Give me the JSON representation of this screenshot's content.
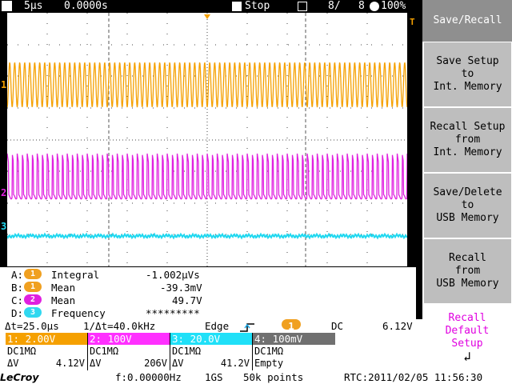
{
  "topbar": {
    "mode_icon": "M",
    "timebase": "5µs",
    "delay": "0.0000s",
    "run_state": "Stop",
    "acq_count": "8/",
    "acq_total": "8",
    "zoom": "100%"
  },
  "markers": {
    "ch1": "1",
    "ch2": "2",
    "ch3": "3",
    "trigger": "T"
  },
  "measurements": [
    {
      "slot": "A:",
      "channel": "1",
      "label": "Integral",
      "value": "-1.002µVs",
      "color": "#f0a020"
    },
    {
      "slot": "B:",
      "channel": "1",
      "label": "Mean",
      "value": "-39.3mV",
      "color": "#f0a020"
    },
    {
      "slot": "C:",
      "channel": "2",
      "label": "Mean",
      "value": "49.7V",
      "color": "#e020e0"
    },
    {
      "slot": "D:",
      "channel": "3",
      "label": "Frequency",
      "value": "*********",
      "color": "#30d8f0"
    }
  ],
  "timebase_row": {
    "delta_t": "Δt=25.0µs",
    "inv_delta_t": "1/Δt=40.0kHz",
    "trigger_type": "Edge",
    "trigger_channel": "1",
    "coupling": "DC",
    "trigger_level": "6.12V"
  },
  "channels": [
    {
      "header": "1: 2.00V",
      "coupling": "DC1MΩ",
      "dv_label": "ΔV",
      "dv": "4.12V",
      "color": "#f5a000"
    },
    {
      "header": "2: 100V",
      "coupling": "DC1MΩ",
      "dv_label": "ΔV",
      "dv": "206V",
      "color": "#ff30ff"
    },
    {
      "header": "3: 20.0V",
      "coupling": "DC1MΩ",
      "dv_label": "ΔV",
      "dv": "41.2V",
      "color": "#20e0f8"
    },
    {
      "header": "4: 100mV",
      "coupling": "DC1MΩ",
      "dv_label": "",
      "dv": "Empty",
      "color": "#707070"
    }
  ],
  "bottom": {
    "logo": "LeCroy",
    "freq": "f:0.00000Hz",
    "sample_rate": "1GS",
    "points": "50k points",
    "rtc": "RTC:2011/02/05 11:56:30"
  },
  "menu": {
    "title": "Save/Recall",
    "items": [
      {
        "lines": [
          "Save Setup",
          "to",
          "Int. Memory"
        ]
      },
      {
        "lines": [
          "Recall Setup",
          "from",
          "Int. Memory"
        ]
      },
      {
        "lines": [
          "Save/Delete",
          "to",
          "USB Memory"
        ]
      },
      {
        "lines": [
          "Recall",
          "from",
          "USB Memory"
        ]
      }
    ],
    "recall_default": {
      "lines": [
        "Recall",
        "Default",
        "Setup"
      ],
      "arrow": "↲"
    }
  },
  "waveforms": {
    "ch1_color": "#f5a000",
    "ch2_color": "#e020e0",
    "ch3_color": "#20d8f0"
  }
}
